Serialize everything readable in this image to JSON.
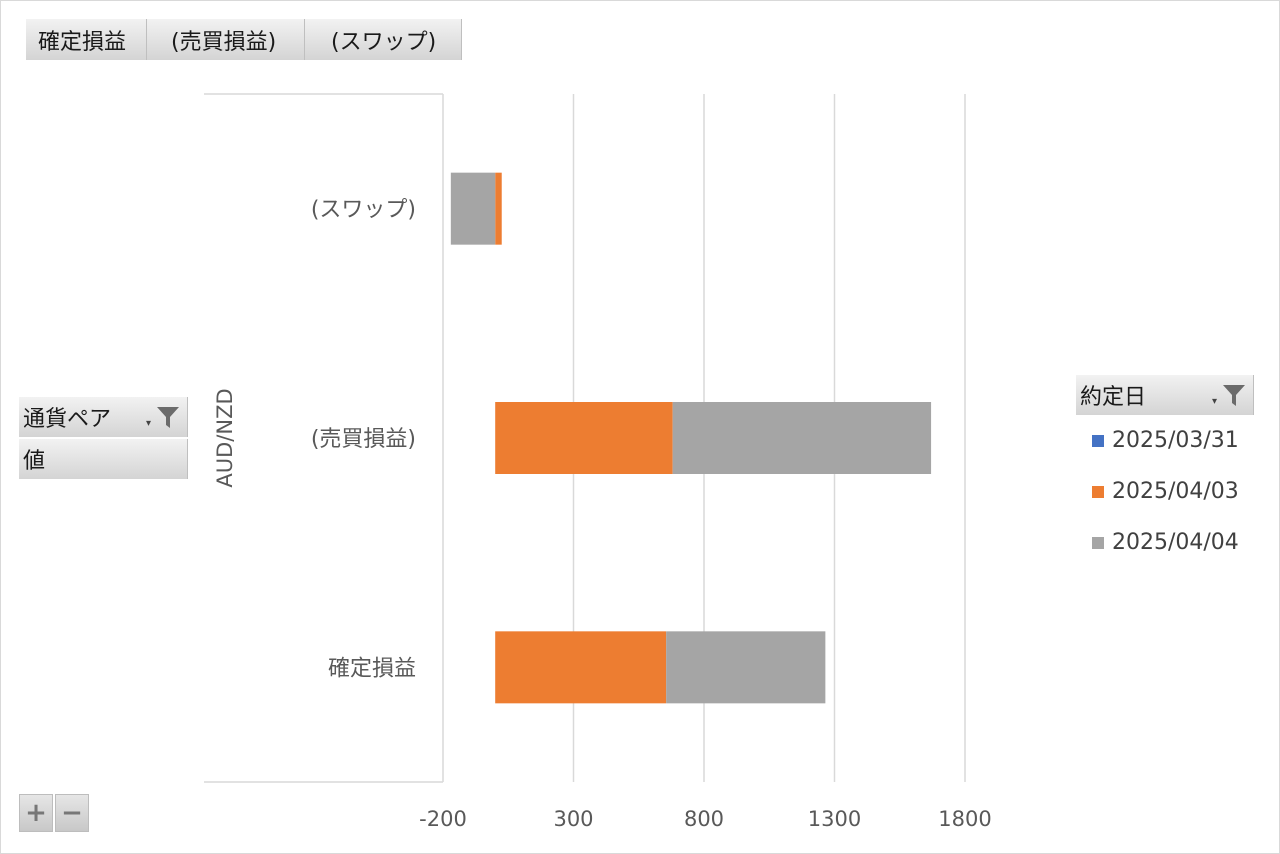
{
  "value_fields": [
    {
      "label": "確定損益"
    },
    {
      "label": "(売買損益)"
    },
    {
      "label": "(スワップ)"
    }
  ],
  "axis_fields": {
    "row_field": "通貨ペア",
    "values_field": "値"
  },
  "legend": {
    "field_label": "約定日",
    "items": [
      {
        "label": "2025/03/31",
        "color": "#4472c4"
      },
      {
        "label": "2025/04/03",
        "color": "#ed7d31"
      },
      {
        "label": "2025/04/04",
        "color": "#a5a5a5"
      }
    ]
  },
  "zoom": {
    "plus": "+",
    "minus": "−"
  },
  "chart_data": {
    "type": "bar",
    "orientation": "horizontal",
    "stacked": true,
    "group_label": "AUD/NZD",
    "categories": [
      "(スワップ)",
      "(売買損益)",
      "確定損益"
    ],
    "series": [
      {
        "name": "2025/03/31",
        "color": "#4472c4",
        "values": [
          0,
          0,
          0
        ]
      },
      {
        "name": "2025/04/03",
        "color": "#ed7d31",
        "values": [
          25,
          680,
          655
        ]
      },
      {
        "name": "2025/04/04",
        "color": "#a5a5a5",
        "values": [
          -170,
          990,
          610
        ]
      }
    ],
    "xlim": [
      -200,
      1800
    ],
    "xticks": [
      -200,
      300,
      800,
      1300,
      1800
    ],
    "grid": true,
    "legend_position": "right"
  }
}
